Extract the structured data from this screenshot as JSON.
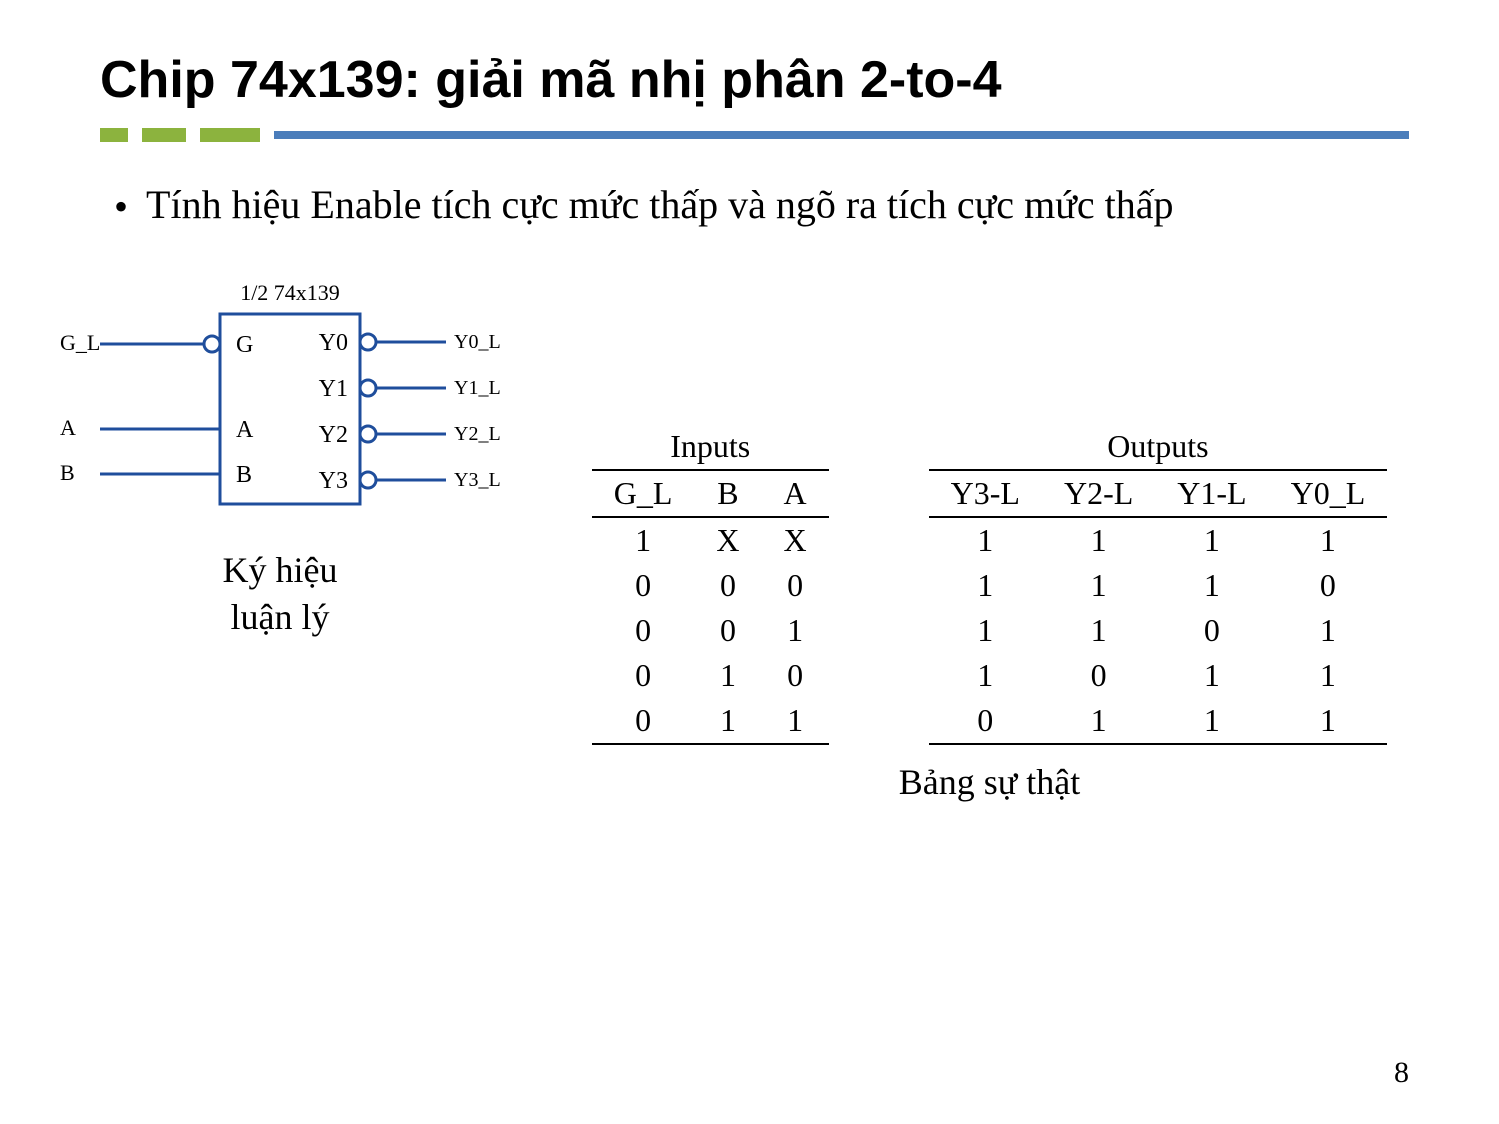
{
  "title": "Chip 74x139: giải mã nhị phân 2-to-4",
  "bullet": "Tính hiệu Enable tích cực mức thấp và ngõ ra tích cực mức thấp",
  "schematic": {
    "chip_label": "1/2  74x139",
    "inputs": [
      {
        "ext": "G_L",
        "pin": "G",
        "bubble": true
      },
      {
        "ext": "A",
        "pin": "A",
        "bubble": false
      },
      {
        "ext": "B",
        "pin": "B",
        "bubble": false
      }
    ],
    "outputs": [
      {
        "pin": "Y0",
        "ext": "Y0_L"
      },
      {
        "pin": "Y1",
        "ext": "Y1_L"
      },
      {
        "pin": "Y2",
        "ext": "Y2_L"
      },
      {
        "pin": "Y3",
        "ext": "Y3_L"
      }
    ],
    "caption_l1": "Ký hiệu",
    "caption_l2": "luận lý",
    "colors": {
      "stroke": "#1f4e9c",
      "text": "#000000"
    }
  },
  "truth_table": {
    "group_inputs": "Inputs",
    "group_outputs": "Outputs",
    "input_cols": [
      "G_L",
      "B",
      "A"
    ],
    "output_cols": [
      "Y3-L",
      "Y2-L",
      "Y1-L",
      "Y0_L"
    ],
    "rows": [
      {
        "in": [
          "1",
          "X",
          "X"
        ],
        "out": [
          "1",
          "1",
          "1",
          "1"
        ]
      },
      {
        "in": [
          "0",
          "0",
          "0"
        ],
        "out": [
          "1",
          "1",
          "1",
          "0"
        ]
      },
      {
        "in": [
          "0",
          "0",
          "1"
        ],
        "out": [
          "1",
          "1",
          "0",
          "1"
        ]
      },
      {
        "in": [
          "0",
          "1",
          "0"
        ],
        "out": [
          "1",
          "0",
          "1",
          "1"
        ]
      },
      {
        "in": [
          "0",
          "1",
          "1"
        ],
        "out": [
          "0",
          "1",
          "1",
          "1"
        ]
      }
    ],
    "caption": "Bảng sự thật"
  },
  "page_number": "8",
  "colors": {
    "accent_green": "#8cb33e",
    "accent_blue": "#4a7dbb",
    "text": "#000000",
    "bg": "#ffffff"
  }
}
